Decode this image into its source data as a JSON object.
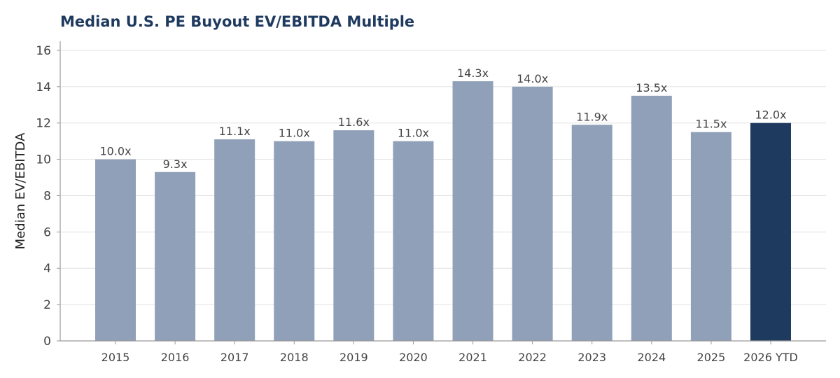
{
  "chart_data": {
    "type": "bar",
    "title": "Median U.S. PE Buyout EV/EBITDA Multiple",
    "xlabel": "",
    "ylabel": "Median EV/EBITDA",
    "categories": [
      "2015",
      "2016",
      "2017",
      "2018",
      "2019",
      "2020",
      "2021",
      "2022",
      "2023",
      "2024",
      "2025",
      "2026 YTD"
    ],
    "values": [
      10.0,
      9.3,
      11.1,
      11.0,
      11.6,
      11.0,
      14.3,
      14.0,
      11.9,
      13.5,
      11.5,
      12.0
    ],
    "data_labels": [
      "10.0x",
      "9.3x",
      "11.1x",
      "11.0x",
      "11.6x",
      "11.0x",
      "14.3x",
      "14.0x",
      "11.9x",
      "13.5x",
      "11.5x",
      "12.0x"
    ],
    "ylim": [
      0,
      16.5
    ],
    "yticks": [
      0,
      2,
      4,
      6,
      8,
      10,
      12,
      14,
      16
    ],
    "grid": true,
    "highlight_index": 11,
    "colors": {
      "bar": "#8fa0b8",
      "highlight": "#1f3a5f",
      "title": "#1f3a5f",
      "grid": "#e0e0e0",
      "axis": "#999999"
    }
  }
}
